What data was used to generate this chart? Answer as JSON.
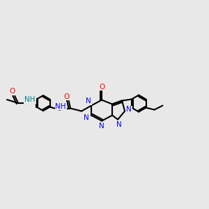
{
  "bg_color": "#e8e8e8",
  "bond_color": "#000000",
  "bond_width": 1.5,
  "atom_colors": {
    "N": "#0000ff",
    "O": "#ff0000",
    "NH_teal": "#008080",
    "NH_blue": "#0000ff",
    "C": "#000000"
  },
  "font_size_atom": 7.5
}
